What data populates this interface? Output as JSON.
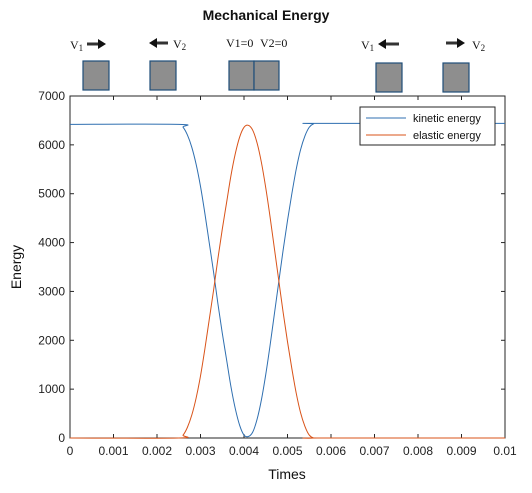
{
  "chart_data": {
    "type": "line",
    "title": "Mechanical Energy",
    "xlabel": "Times",
    "ylabel": "Energy",
    "xlim": [
      0,
      0.01
    ],
    "ylim": [
      0,
      7000
    ],
    "xticks": [
      "0",
      "0.001",
      "0.002",
      "0.003",
      "0.004",
      "0.005",
      "0.006",
      "0.007",
      "0.008",
      "0.009",
      "0.01"
    ],
    "yticks": [
      "0",
      "1000",
      "2000",
      "3000",
      "4000",
      "5000",
      "6000",
      "7000"
    ],
    "legend_position": "top-right",
    "series": [
      {
        "name": "kinetic energy",
        "color": "#2f6fb0",
        "x": [
          0,
          0.0025,
          0.0026,
          0.0027,
          0.0028,
          0.0029,
          0.003,
          0.0031,
          0.0032,
          0.0033,
          0.0034,
          0.0035,
          0.0036,
          0.0037,
          0.0038,
          0.0039,
          0.004,
          0.0041,
          0.0042,
          0.0043,
          0.0044,
          0.0045,
          0.0046,
          0.0047,
          0.0048,
          0.0049,
          0.005,
          0.0051,
          0.0052,
          0.0053,
          0.0054,
          0.0055,
          0.0056,
          0.0057,
          0.01
        ],
        "y": [
          6420,
          6420,
          6360,
          6200,
          5950,
          5600,
          5150,
          4600,
          4000,
          3400,
          2750,
          2150,
          1600,
          1050,
          600,
          260,
          60,
          30,
          120,
          380,
          780,
          1300,
          1900,
          2550,
          3200,
          3850,
          4450,
          5000,
          5500,
          5900,
          6180,
          6360,
          6430,
          6440,
          6440
        ]
      },
      {
        "name": "elastic energy",
        "color": "#d95319",
        "x": [
          0,
          0.0025,
          0.0026,
          0.0027,
          0.0028,
          0.0029,
          0.003,
          0.0031,
          0.0032,
          0.0033,
          0.0034,
          0.0035,
          0.0036,
          0.0037,
          0.0038,
          0.0039,
          0.004,
          0.0041,
          0.0042,
          0.0043,
          0.0044,
          0.0045,
          0.0046,
          0.0047,
          0.0048,
          0.0049,
          0.005,
          0.0051,
          0.0052,
          0.0053,
          0.0054,
          0.0055,
          0.0056,
          0.0057,
          0.01
        ],
        "y": [
          0,
          0,
          60,
          220,
          470,
          820,
          1270,
          1820,
          2420,
          3020,
          3670,
          4270,
          4820,
          5370,
          5820,
          6160,
          6360,
          6400,
          6300,
          6040,
          5640,
          5120,
          4520,
          3870,
          3220,
          2570,
          1970,
          1420,
          920,
          520,
          240,
          60,
          0,
          0,
          0
        ]
      }
    ]
  },
  "annotation": {
    "v1": "V",
    "v1_sub": "1",
    "v2": "V",
    "v2_sub": "2",
    "v1_zero": "V1=0",
    "v2_zero": "V2=0"
  }
}
